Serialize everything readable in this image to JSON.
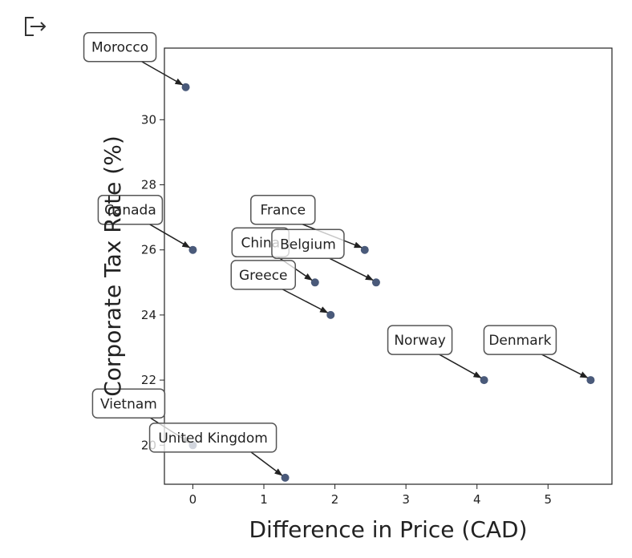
{
  "output_icon": "output-arrow-icon",
  "chart_data": {
    "type": "scatter",
    "title": "",
    "xlabel": "Difference in Price (CAD)",
    "ylabel": "Corporate Tax Rate (%)",
    "xlim": [
      -0.4,
      5.9
    ],
    "ylim": [
      18.8,
      32.2
    ],
    "xticks": [
      0,
      1,
      2,
      3,
      4,
      5
    ],
    "yticks": [
      20,
      22,
      24,
      26,
      28,
      30
    ],
    "point_color": "#4a5a7a",
    "points": [
      {
        "label": "Morocco",
        "x": -0.1,
        "y": 31.0
      },
      {
        "label": "Canada",
        "x": 0.0,
        "y": 26.0
      },
      {
        "label": "France",
        "x": 2.42,
        "y": 26.0
      },
      {
        "label": "China",
        "x": 1.72,
        "y": 25.0
      },
      {
        "label": "Belgium",
        "x": 2.58,
        "y": 25.0
      },
      {
        "label": "Greece",
        "x": 1.94,
        "y": 24.0
      },
      {
        "label": "Norway",
        "x": 4.1,
        "y": 22.0
      },
      {
        "label": "Denmark",
        "x": 5.6,
        "y": 22.0
      },
      {
        "label": "Vietnam",
        "x": 0.0,
        "y": 20.0
      },
      {
        "label": "United Kingdom",
        "x": 1.3,
        "y": 19.0
      }
    ]
  }
}
